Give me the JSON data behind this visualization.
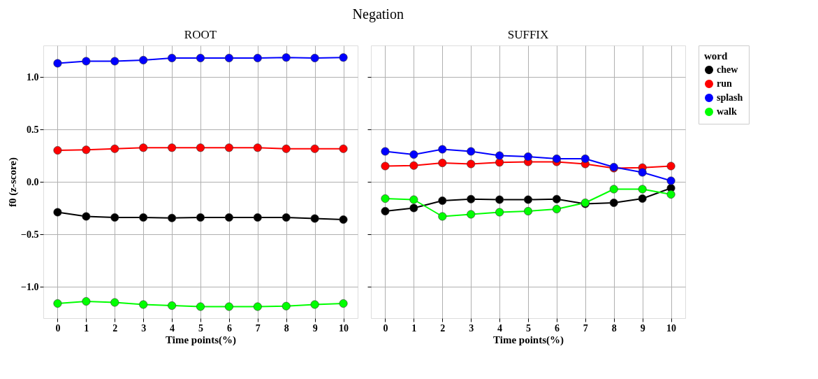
{
  "chart_data": [
    {
      "type": "line",
      "title": "ROOT",
      "annotations": [
        "Negation"
      ],
      "xlabel": "Time points(%)",
      "ylabel": "f0 (z-score)",
      "x": [
        0,
        1,
        2,
        3,
        4,
        5,
        6,
        7,
        8,
        9,
        10
      ],
      "xlim": [
        -0.5,
        10.5
      ],
      "xticks": [
        0,
        1,
        2,
        3,
        4,
        5,
        6,
        7,
        8,
        9,
        10
      ],
      "ylim": [
        -1.3,
        1.3
      ],
      "yticks": [
        {
          "value": -1,
          "label": "−1.0"
        },
        {
          "value": -0.5,
          "label": "−0.5"
        },
        {
          "value": 0,
          "label": "0.0"
        },
        {
          "value": 0.5,
          "label": "0.5"
        },
        {
          "value": 1,
          "label": "1.0"
        }
      ],
      "grid": true,
      "marker": "circle",
      "line_style": "solid",
      "legend": "right",
      "series": [
        {
          "name": "chew",
          "color": "#000000",
          "values": [
            -0.29,
            -0.33,
            -0.34,
            -0.34,
            -0.345,
            -0.34,
            -0.34,
            -0.34,
            -0.34,
            -0.35,
            -0.36
          ]
        },
        {
          "name": "run",
          "color": "#ff0000",
          "values": [
            0.3,
            0.305,
            0.315,
            0.325,
            0.325,
            0.325,
            0.325,
            0.325,
            0.315,
            0.315,
            0.315
          ]
        },
        {
          "name": "splash",
          "color": "#0000ff",
          "values": [
            1.13,
            1.15,
            1.15,
            1.16,
            1.18,
            1.18,
            1.18,
            1.18,
            1.185,
            1.18,
            1.185
          ]
        },
        {
          "name": "walk",
          "color": "#00ff00",
          "values": [
            -1.16,
            -1.14,
            -1.15,
            -1.17,
            -1.18,
            -1.19,
            -1.19,
            -1.19,
            -1.185,
            -1.17,
            -1.16
          ]
        }
      ]
    },
    {
      "type": "line",
      "title": "SUFFIX",
      "xlabel": "Time points(%)",
      "legend_title": "word",
      "x": [
        0,
        1,
        2,
        3,
        4,
        5,
        6,
        7,
        8,
        9,
        10
      ],
      "xlim": [
        -0.5,
        10.5
      ],
      "xticks": [
        0,
        1,
        2,
        3,
        4,
        5,
        6,
        7,
        8,
        9,
        10
      ],
      "ylim": [
        -1.3,
        1.3
      ],
      "yticks": [
        {
          "value": -1,
          "label": null
        },
        {
          "value": -0.5,
          "label": null
        },
        {
          "value": 0,
          "label": null
        },
        {
          "value": 0.5,
          "label": null
        },
        {
          "value": 1,
          "label": null
        }
      ],
      "tick_labels": "x",
      "grid": true,
      "marker": "circle",
      "line_style": "solid",
      "legend": "right",
      "series": [
        {
          "name": "chew",
          "color": "#000000",
          "values": [
            -0.28,
            -0.25,
            -0.18,
            -0.165,
            -0.17,
            -0.17,
            -0.165,
            -0.21,
            -0.2,
            -0.16,
            -0.06
          ]
        },
        {
          "name": "run",
          "color": "#ff0000",
          "values": [
            0.15,
            0.155,
            0.18,
            0.17,
            0.185,
            0.19,
            0.19,
            0.17,
            0.13,
            0.135,
            0.15
          ]
        },
        {
          "name": "splash",
          "color": "#0000ff",
          "values": [
            0.29,
            0.26,
            0.31,
            0.29,
            0.25,
            0.24,
            0.22,
            0.22,
            0.14,
            0.09,
            0.01
          ]
        },
        {
          "name": "walk",
          "color": "#00ff00",
          "values": [
            -0.16,
            -0.17,
            -0.33,
            -0.31,
            -0.29,
            -0.28,
            -0.26,
            -0.2,
            -0.07,
            -0.07,
            -0.12
          ]
        }
      ]
    }
  ]
}
